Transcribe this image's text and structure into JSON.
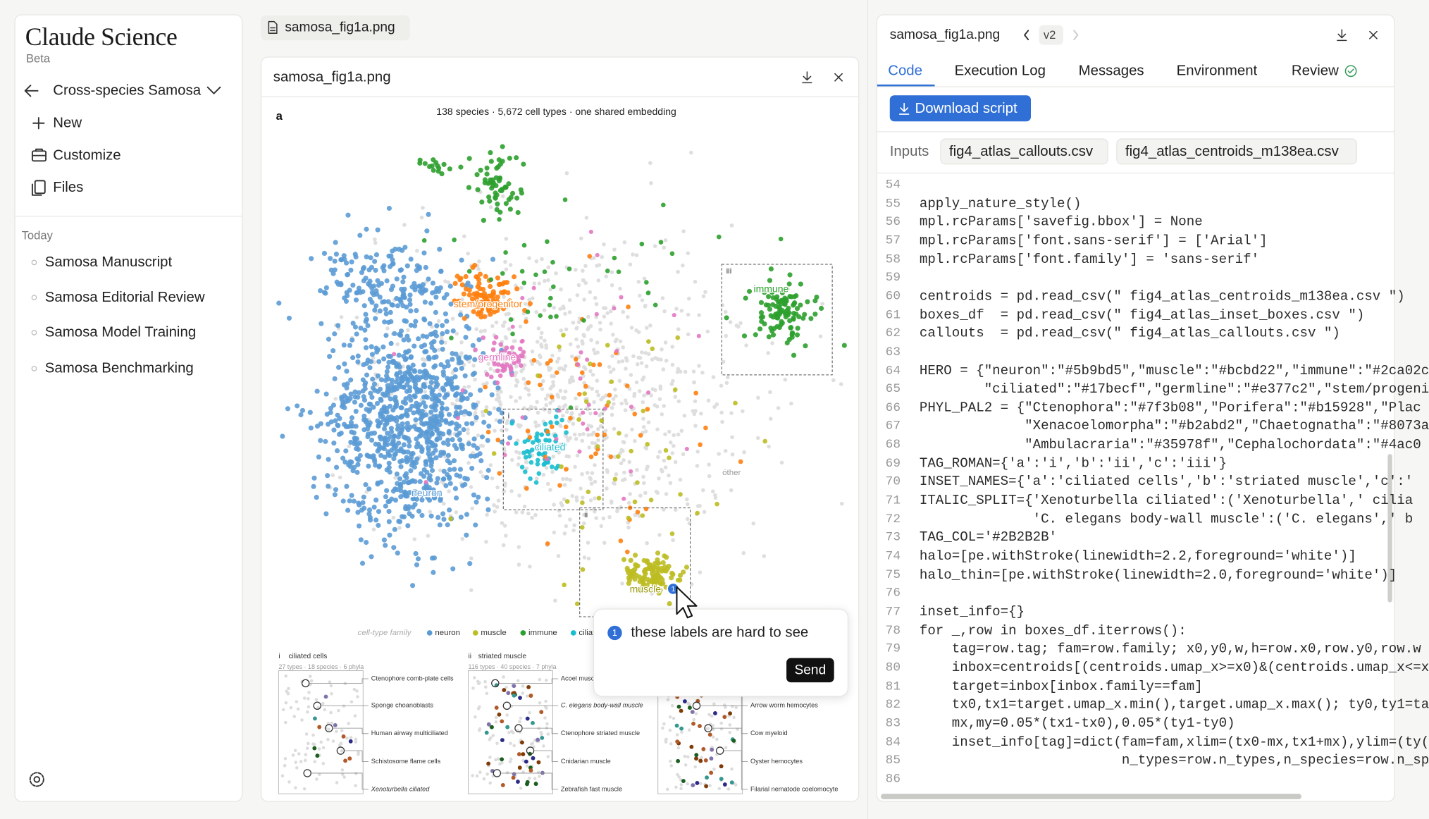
{
  "sidebar": {
    "brand": "Claude Science",
    "badge": "Beta",
    "project": "Cross-species Samosa",
    "menu": [
      "New",
      "Customize",
      "Files"
    ],
    "section": "Today",
    "chats": [
      "Samosa Manuscript",
      "Samosa Editorial Review",
      "Samosa Model Training",
      "Samosa Benchmarking"
    ]
  },
  "open_tab": "samosa_fig1a.png",
  "viewer": {
    "title": "samosa_fig1a.png",
    "figure": {
      "panel": "a",
      "subtitle": "138 species · 5,672 cell types · one shared embedding",
      "clusters": [
        "stem/progenitor",
        "germline",
        "immune",
        "ciliated",
        "neuron",
        "muscle",
        "other"
      ],
      "box_tags": [
        "iii",
        "i",
        "ii"
      ],
      "legend": {
        "title": "cell-type family",
        "items": [
          "neuron",
          "muscle",
          "immune",
          "ciliated"
        ]
      },
      "insets": [
        {
          "tag": "i",
          "title": "ciliated cells",
          "stats": "27 types · 18 species · 6 phyla",
          "labels": [
            "Ctenophore comb-plate cells",
            "Sponge choanoblasts",
            "Human airway multiciliated",
            "Schistosome flame cells",
            "Xenoturbella ciliated"
          ]
        },
        {
          "tag": "ii",
          "title": "striated muscle",
          "stats": "116 types · 40 species · 7 phyla",
          "labels": [
            "Acoel muscle",
            "C. elegans body-wall muscle",
            "Ctenophore striated muscle",
            "Cnidarian muscle",
            "Zebrafish fast muscle"
          ]
        },
        {
          "labels": [
            "Arrow worm hemocytes",
            "Cow myeloid",
            "Oyster hemocytes",
            "Filarial nematode coelomocyte"
          ]
        }
      ]
    }
  },
  "comment": {
    "marker": "1",
    "text": "these labels are hard to see",
    "button": "Send"
  },
  "inspector": {
    "file": "samosa_fig1a.png",
    "version": "v2",
    "tabs": [
      "Code",
      "Execution Log",
      "Messages",
      "Environment",
      "Review"
    ],
    "download": "Download script",
    "inputs_label": "Inputs",
    "inputs": [
      "fig4_atlas_callouts.csv",
      "fig4_atlas_centroids_m138ea.csv"
    ],
    "code": [
      {
        "no": "54",
        "text": ""
      },
      {
        "no": "55",
        "text": "apply_nature_style()"
      },
      {
        "no": "56",
        "text": "mpl.rcParams['savefig.bbox'] = None"
      },
      {
        "no": "57",
        "text": "mpl.rcParams['font.sans-serif'] = ['Arial']"
      },
      {
        "no": "58",
        "text": "mpl.rcParams['font.family'] = 'sans-serif'"
      },
      {
        "no": "59",
        "text": ""
      },
      {
        "no": "60",
        "text": "centroids = pd.read_csv(\" fig4_atlas_centroids_m138ea.csv \")"
      },
      {
        "no": "61",
        "text": "boxes_df  = pd.read_csv(\" fig4_atlas_inset_boxes.csv \")"
      },
      {
        "no": "62",
        "text": "callouts  = pd.read_csv(\" fig4_atlas_callouts.csv \")"
      },
      {
        "no": "63",
        "text": ""
      },
      {
        "no": "64",
        "text": "HERO = {\"neuron\":\"#5b9bd5\",\"muscle\":\"#bcbd22\",\"immune\":\"#2ca02c"
      },
      {
        "no": "65",
        "text": "        \"ciliated\":\"#17becf\",\"germline\":\"#e377c2\",\"stem/progeni"
      },
      {
        "no": "66",
        "text": "PHYL_PAL2 = {\"Ctenophora\":\"#7f3b08\",\"Porifera\":\"#b15928\",\"Plac"
      },
      {
        "no": "67",
        "text": "             \"Xenacoelomorpha\":\"#b2abd2\",\"Chaetognatha\":\"#8073a"
      },
      {
        "no": "68",
        "text": "             \"Ambulacraria\":\"#35978f\",\"Cephalochordata\":\"#4ac0"
      },
      {
        "no": "69",
        "text": "TAG_ROMAN={'a':'i','b':'ii','c':'iii'}"
      },
      {
        "no": "70",
        "text": "INSET_NAMES={'a':'ciliated cells','b':'striated muscle','c':'"
      },
      {
        "no": "71",
        "text": "ITALIC_SPLIT={'Xenoturbella ciliated':('Xenoturbella',' cilia"
      },
      {
        "no": "72",
        "text": "              'C. elegans body-wall muscle':('C. elegans',' b"
      },
      {
        "no": "73",
        "text": "TAG_COL='#2B2B2B'"
      },
      {
        "no": "74",
        "text": "halo=[pe.withStroke(linewidth=2.2,foreground='white')]"
      },
      {
        "no": "75",
        "text": "halo_thin=[pe.withStroke(linewidth=2.0,foreground='white')]"
      },
      {
        "no": "76",
        "text": ""
      },
      {
        "no": "77",
        "text": "inset_info={}"
      },
      {
        "no": "78",
        "text": "for _,row in boxes_df.iterrows():"
      },
      {
        "no": "79",
        "text": "    tag=row.tag; fam=row.family; x0,y0,w,h=row.x0,row.y0,row.w"
      },
      {
        "no": "80",
        "text": "    inbox=centroids[(centroids.umap_x>=x0)&(centroids.umap_x<=x"
      },
      {
        "no": "81",
        "text": "    target=inbox[inbox.family==fam]"
      },
      {
        "no": "82",
        "text": "    tx0,tx1=target.umap_x.min(),target.umap_x.max(); ty0,ty1=ta"
      },
      {
        "no": "83",
        "text": "    mx,my=0.05*(tx1-tx0),0.05*(ty1-ty0)"
      },
      {
        "no": "84",
        "text": "    inset_info[tag]=dict(fam=fam,xlim=(tx0-mx,tx1+mx),ylim=(ty("
      },
      {
        "no": "85",
        "text": "                         n_types=row.n_types,n_species=row.n_sp"
      },
      {
        "no": "86",
        "text": ""
      }
    ]
  }
}
